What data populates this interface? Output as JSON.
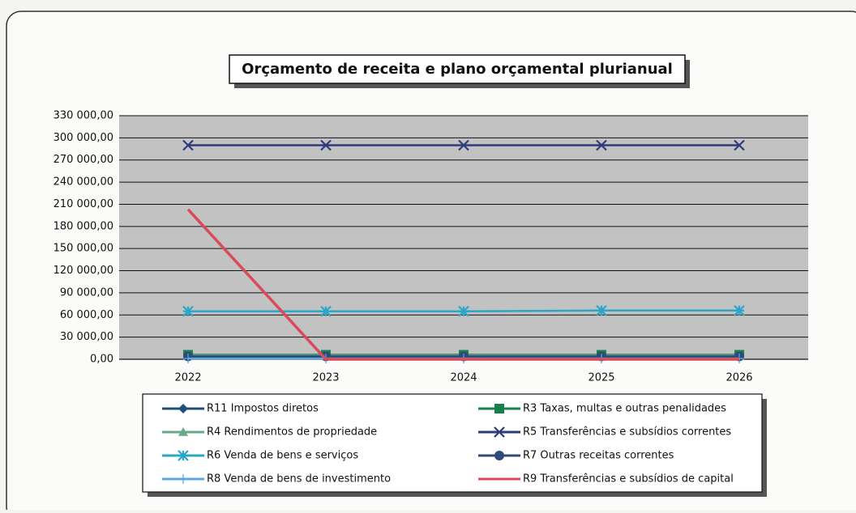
{
  "chart_data": {
    "type": "line",
    "title": "Orçamento de receita e plano orçamental plurianual",
    "categories": [
      "2022",
      "2023",
      "2024",
      "2025",
      "2026"
    ],
    "ylim": [
      0,
      330000
    ],
    "yticks": [
      {
        "value": 0,
        "label": "0,00"
      },
      {
        "value": 30000,
        "label": "30 000,00"
      },
      {
        "value": 60000,
        "label": "60 000,00"
      },
      {
        "value": 90000,
        "label": "90 000,00"
      },
      {
        "value": 120000,
        "label": "120 000,00"
      },
      {
        "value": 150000,
        "label": "150 000,00"
      },
      {
        "value": 180000,
        "label": "180 000,00"
      },
      {
        "value": 210000,
        "label": "210 000,00"
      },
      {
        "value": 240000,
        "label": "240 000,00"
      },
      {
        "value": 270000,
        "label": "270 000,00"
      },
      {
        "value": 300000,
        "label": "300 000,00"
      },
      {
        "value": 330000,
        "label": "330 000,00"
      }
    ],
    "grid": true,
    "legend": "bottom",
    "series": [
      {
        "name": "R11 Impostos diretos",
        "color": "#1f4e79",
        "marker": "diamond",
        "values": [
          3000,
          3000,
          3000,
          3000,
          3000
        ]
      },
      {
        "name": "R3 Taxas, multas e outras penalidades",
        "color": "#17804d",
        "marker": "square",
        "values": [
          6000,
          6000,
          6000,
          6000,
          6000
        ]
      },
      {
        "name": "R4 Rendimentos de propriedade",
        "color": "#6aa88a",
        "marker": "triangle",
        "values": [
          5000,
          5000,
          5000,
          5000,
          5000
        ]
      },
      {
        "name": "R5 Transferências e subsídios correntes",
        "color": "#2e3a7a",
        "marker": "x",
        "values": [
          290000,
          290000,
          290000,
          290000,
          290000
        ]
      },
      {
        "name": "R6 Venda de bens e serviços",
        "color": "#2aa6c8",
        "marker": "asterisk",
        "values": [
          65000,
          65000,
          65000,
          66000,
          66000
        ]
      },
      {
        "name": "R7 Outras receitas correntes",
        "color": "#2e4a7a",
        "marker": "circle",
        "values": [
          4000,
          4000,
          4000,
          4000,
          4000
        ]
      },
      {
        "name": "R8 Venda de bens de investimento",
        "color": "#5aa8e0",
        "marker": "plus",
        "values": [
          1000,
          1000,
          1000,
          1000,
          1000
        ]
      },
      {
        "name": "R9 Transferências e subsídios de capital",
        "color": "#d94a5a",
        "marker": "none",
        "values": [
          203000,
          0,
          0,
          0,
          0
        ]
      }
    ]
  }
}
